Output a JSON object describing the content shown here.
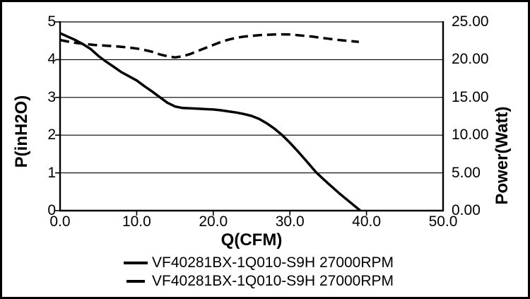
{
  "chart_data": {
    "type": "line",
    "title": "",
    "xlabel": "Q(CFM)",
    "ylabel_left": "P(inH2O)",
    "ylabel_right": "Power(Watt)",
    "x_range": [
      0,
      50
    ],
    "y_left_range": [
      0,
      5
    ],
    "y_right_range": [
      0,
      25
    ],
    "grid": "horizontal-only",
    "legend_position": "bottom",
    "x_tick_labels": [
      "0.0",
      "10.0",
      "20.0",
      "30.0",
      "40.0",
      "50.0"
    ],
    "y_left_tick_labels": [
      "0",
      "1",
      "2",
      "3",
      "4",
      "5"
    ],
    "y_right_tick_labels": [
      "0.00",
      "5.00",
      "10.00",
      "15.00",
      "20.00",
      "25.00"
    ],
    "colors": {
      "line": "#000000",
      "background": "#ffffff",
      "border": "#000000"
    },
    "series": [
      {
        "name": "VF40281BX-1Q010-S9H 27000RPM",
        "style": "solid",
        "axis": "left",
        "unit": "inH2O",
        "points": [
          [
            0,
            4.7
          ],
          [
            1,
            4.61
          ],
          [
            2,
            4.52
          ],
          [
            3,
            4.41
          ],
          [
            4,
            4.28
          ],
          [
            5,
            4.1
          ],
          [
            6,
            3.95
          ],
          [
            7,
            3.81
          ],
          [
            8,
            3.67
          ],
          [
            9,
            3.56
          ],
          [
            10,
            3.45
          ],
          [
            11,
            3.3
          ],
          [
            12,
            3.16
          ],
          [
            13,
            3.01
          ],
          [
            14,
            2.86
          ],
          [
            15,
            2.76
          ],
          [
            16,
            2.72
          ],
          [
            17,
            2.71
          ],
          [
            18,
            2.7
          ],
          [
            19,
            2.69
          ],
          [
            20,
            2.68
          ],
          [
            21,
            2.66
          ],
          [
            22,
            2.63
          ],
          [
            23,
            2.6
          ],
          [
            24,
            2.56
          ],
          [
            25,
            2.51
          ],
          [
            26,
            2.43
          ],
          [
            27,
            2.31
          ],
          [
            28,
            2.17
          ],
          [
            29,
            2.0
          ],
          [
            30,
            1.8
          ],
          [
            31,
            1.58
          ],
          [
            32,
            1.35
          ],
          [
            33.5,
            1.0
          ],
          [
            35,
            0.72
          ],
          [
            36.5,
            0.45
          ],
          [
            38,
            0.2
          ],
          [
            39.2,
            0.0
          ]
        ]
      },
      {
        "name": "VF40281BX-1Q010-S9H 27000RPM",
        "style": "dashed",
        "axis": "right",
        "unit": "Watt",
        "points": [
          [
            0,
            22.6
          ],
          [
            1.5,
            22.3
          ],
          [
            3,
            22.1
          ],
          [
            4.5,
            21.95
          ],
          [
            6,
            21.85
          ],
          [
            7.5,
            21.75
          ],
          [
            9,
            21.6
          ],
          [
            10.5,
            21.4
          ],
          [
            12,
            21.05
          ],
          [
            13,
            20.7
          ],
          [
            14,
            20.45
          ],
          [
            15,
            20.3
          ],
          [
            16,
            20.45
          ],
          [
            17,
            20.75
          ],
          [
            18,
            21.15
          ],
          [
            19,
            21.55
          ],
          [
            20,
            21.95
          ],
          [
            21,
            22.35
          ],
          [
            22,
            22.65
          ],
          [
            23,
            22.9
          ],
          [
            24,
            23.05
          ],
          [
            25,
            23.15
          ],
          [
            26,
            23.25
          ],
          [
            27,
            23.3
          ],
          [
            28,
            23.33
          ],
          [
            29,
            23.35
          ],
          [
            30,
            23.33
          ],
          [
            31,
            23.25
          ],
          [
            32,
            23.15
          ],
          [
            33,
            23.05
          ],
          [
            34,
            22.9
          ],
          [
            35,
            22.78
          ],
          [
            36,
            22.65
          ],
          [
            37,
            22.55
          ],
          [
            38,
            22.45
          ],
          [
            39,
            22.35
          ]
        ]
      }
    ]
  }
}
